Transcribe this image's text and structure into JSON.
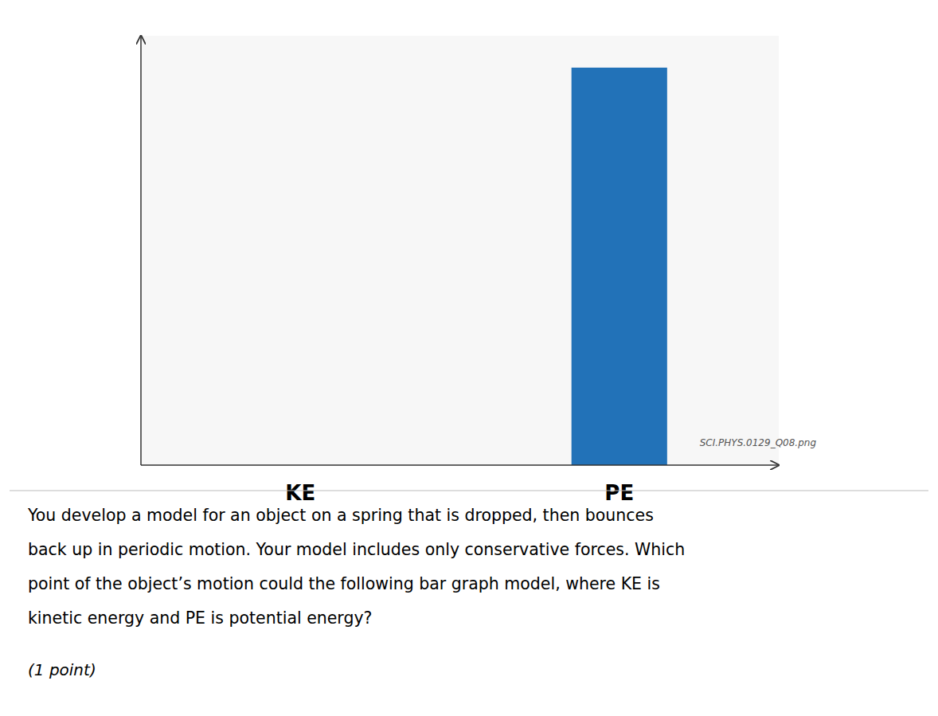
{
  "chart_data": {
    "type": "bar",
    "categories": [
      "KE",
      "PE"
    ],
    "values": [
      0,
      1.0
    ],
    "color": "#2272B8",
    "ylim": [
      0,
      1.08
    ],
    "grid": false,
    "tick_labels": "x",
    "annotations": [
      "You develop a model for an object on a spring that is dropped, then bounces",
      "back up in periodic motion. Your model includes only conservative forces. Which",
      "point of the object’s motion could the following bar graph model, where KE is",
      "kinetic energy and PE is potential energy?",
      "(1 point)",
      "SCI.PHYS.0129_Q08.png"
    ]
  }
}
